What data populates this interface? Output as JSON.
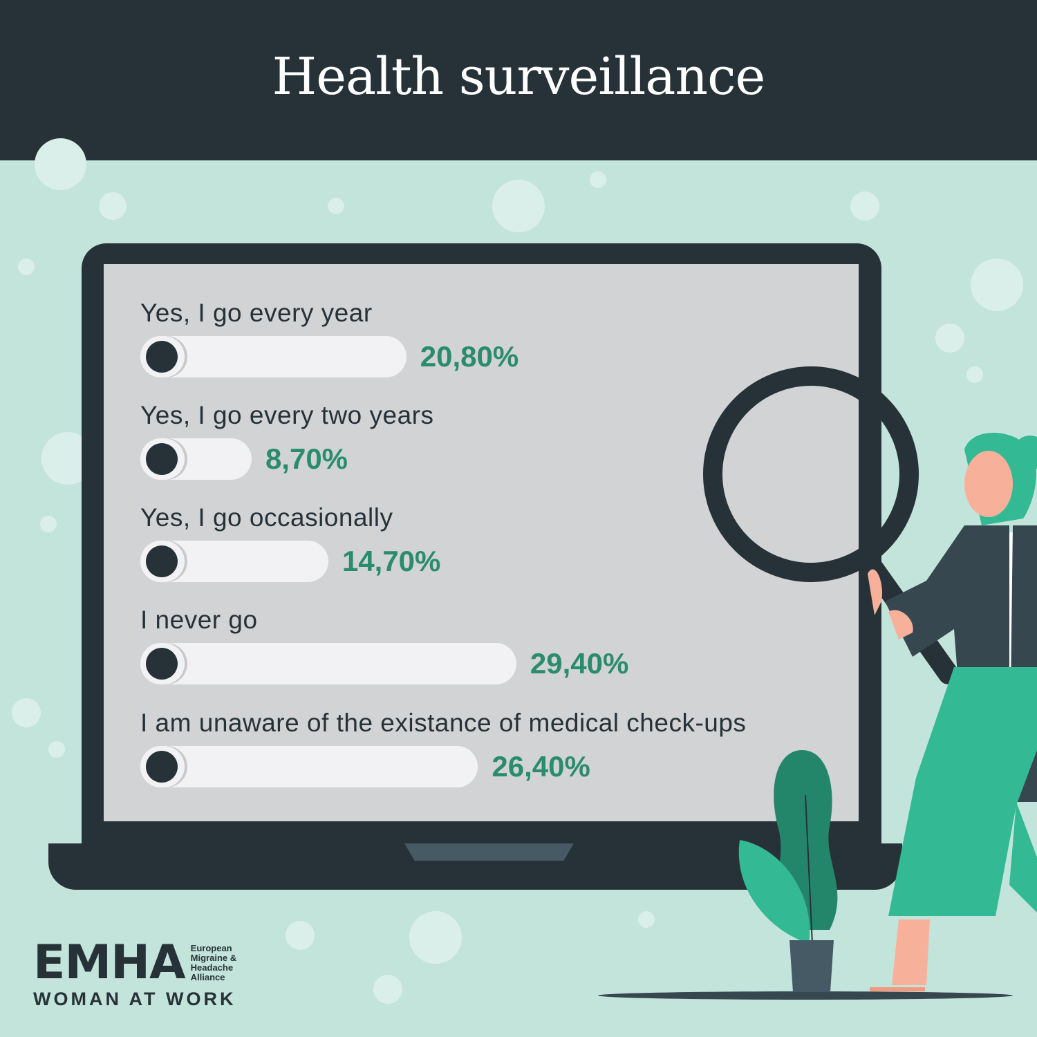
{
  "header": {
    "title": "Health surveillance"
  },
  "chart_data": {
    "type": "bar",
    "orientation": "horizontal",
    "categories": [
      "Yes, I go every year",
      "Yes, I go every two years",
      "Yes, I go occasionally",
      "I never go",
      "I am unaware of the existance of medical check-ups"
    ],
    "values": [
      20.8,
      8.7,
      14.7,
      29.4,
      26.4
    ],
    "value_labels": [
      "20,80%",
      "8,70%",
      "14,70%",
      "29,40%",
      "26,40%"
    ],
    "unit": "%",
    "colors": {
      "bar": "#f2f2f4",
      "knob": "#263238",
      "value_text": "#2a8c6b"
    }
  },
  "logo": {
    "mark": "EMHA",
    "org_lines": [
      "European",
      "Migraine &",
      "Headache",
      "Alliance"
    ],
    "tagline": "WOMAN AT WORK"
  }
}
